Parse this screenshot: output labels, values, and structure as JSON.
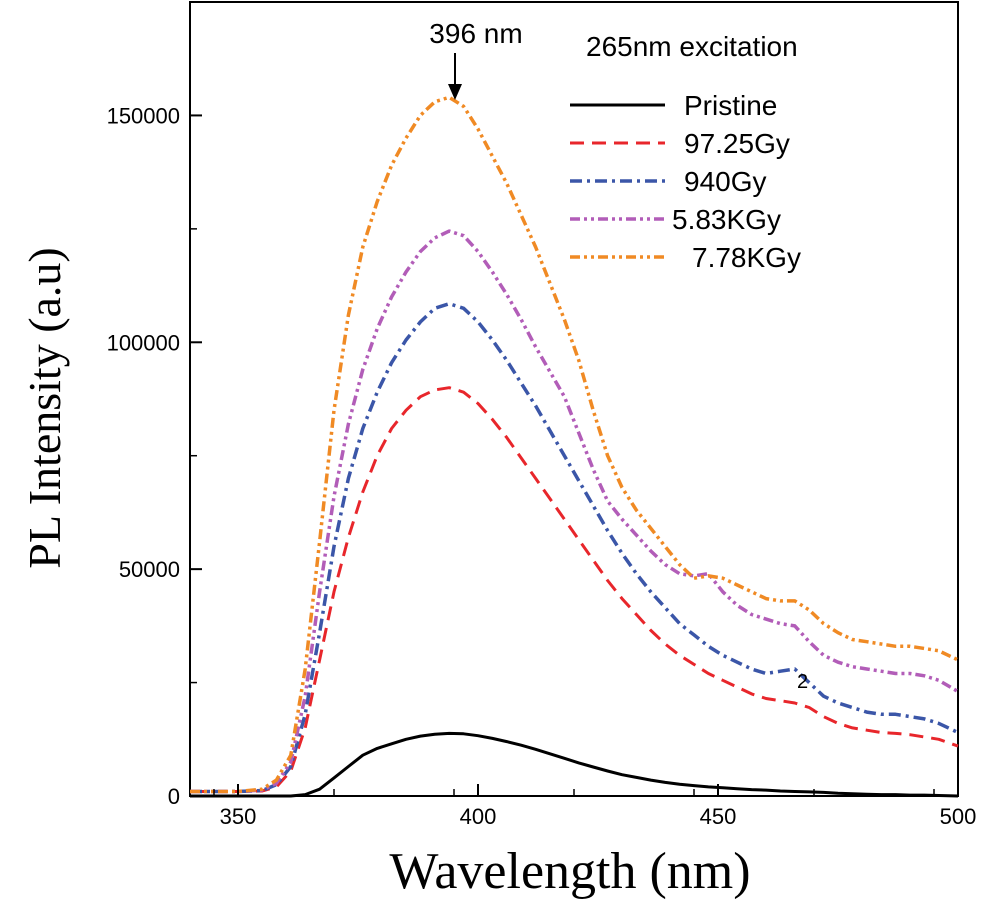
{
  "chart_data": {
    "type": "line",
    "title": "",
    "xlabel": "Wavelength (nm)",
    "ylabel": "PL Intensity (a.u)",
    "xlim": [
      340,
      500
    ],
    "ylim": [
      0,
      175000
    ],
    "x_ticks": [
      350,
      400,
      450,
      500
    ],
    "y_ticks": [
      0,
      50000,
      100000,
      150000
    ],
    "x_tick_labels": [
      "350",
      "400",
      "450",
      "500"
    ],
    "y_tick_labels": [
      "0",
      "50000",
      "100000",
      "150000"
    ],
    "grid": false,
    "legend_position": "top-right",
    "annotations": {
      "peak_label": "396 nm",
      "peak_x": 395,
      "peak_y": 154000,
      "excitation": "265nm excitation",
      "stray_mark": "2"
    },
    "x": [
      340,
      350,
      355,
      358,
      361,
      364,
      367,
      370,
      373,
      376,
      379,
      382,
      385,
      388,
      391,
      394,
      397,
      400,
      403,
      406,
      409,
      412,
      415,
      418,
      421,
      424,
      427,
      430,
      433,
      436,
      439,
      442,
      445,
      448,
      451,
      454,
      457,
      460,
      463,
      466,
      469,
      472,
      475,
      478,
      481,
      484,
      487,
      490,
      493,
      496,
      500
    ],
    "series": [
      {
        "name": "Pristine",
        "color": "#000000",
        "dash": "solid",
        "values": [
          0,
          0,
          0,
          0,
          0,
          300,
          1500,
          4000,
          6500,
          9000,
          10500,
          11500,
          12500,
          13200,
          13600,
          13800,
          13700,
          13300,
          12700,
          12000,
          11200,
          10300,
          9300,
          8300,
          7300,
          6400,
          5500,
          4700,
          4100,
          3500,
          3000,
          2600,
          2300,
          2000,
          1800,
          1600,
          1400,
          1300,
          1100,
          1000,
          900,
          800,
          600,
          500,
          400,
          300,
          300,
          200,
          200,
          100,
          0
        ]
      },
      {
        "name": "97.25Gy",
        "color": "#e8262b",
        "dash": "dashed",
        "values": [
          1000,
          1000,
          1100,
          2000,
          5500,
          15000,
          30000,
          45000,
          57000,
          67000,
          75000,
          81000,
          85000,
          88000,
          89500,
          90000,
          89000,
          86500,
          83000,
          79000,
          74500,
          70000,
          65500,
          61000,
          56500,
          52000,
          47500,
          43500,
          40000,
          36500,
          33500,
          31000,
          29000,
          27000,
          25500,
          24000,
          22500,
          21500,
          21000,
          20500,
          19500,
          17500,
          16000,
          15000,
          14500,
          14000,
          13800,
          13500,
          13000,
          12500,
          11000
        ]
      },
      {
        "name": "940Gy",
        "color": "#3b56a8",
        "dash": "dashdot",
        "values": [
          1000,
          1000,
          1200,
          2500,
          6500,
          18000,
          36000,
          55000,
          70000,
          81000,
          89000,
          95500,
          100500,
          104500,
          107500,
          108500,
          107500,
          104500,
          100500,
          96000,
          91000,
          86000,
          80500,
          75000,
          69500,
          64000,
          58500,
          53500,
          49000,
          45000,
          41500,
          38000,
          35500,
          33000,
          31000,
          29500,
          28000,
          27000,
          27500,
          28000,
          25000,
          22000,
          20500,
          19500,
          18500,
          18000,
          18000,
          17500,
          17000,
          16000,
          14000
        ]
      },
      {
        "name": "5.83KGy",
        "color": "#b25db8",
        "dash": "dashdotdot",
        "values": [
          1000,
          1000,
          1300,
          2800,
          7500,
          22000,
          45000,
          66000,
          82000,
          94000,
          103000,
          110000,
          115500,
          120000,
          123000,
          124500,
          123500,
          120000,
          115500,
          110500,
          105000,
          99000,
          93500,
          88000,
          80000,
          72000,
          65000,
          61000,
          57500,
          54000,
          51000,
          49000,
          48500,
          49000,
          45000,
          42000,
          40000,
          39000,
          38000,
          37500,
          34000,
          31000,
          29500,
          28500,
          28000,
          27500,
          27000,
          27000,
          26500,
          25500,
          23000
        ]
      },
      {
        "name": "7.78KGy",
        "color": "#f08a24",
        "dash": "dashdotdot",
        "values": [
          1000,
          1000,
          1500,
          3500,
          9000,
          28000,
          56000,
          85000,
          106000,
          121000,
          131000,
          139000,
          145000,
          150000,
          153000,
          154000,
          152000,
          147000,
          141000,
          135000,
          128000,
          121000,
          113000,
          105000,
          96000,
          85000,
          75000,
          68000,
          63000,
          59000,
          55000,
          51000,
          48000,
          48500,
          48000,
          46500,
          45000,
          43500,
          43000,
          43000,
          41000,
          38000,
          36000,
          34500,
          34000,
          33500,
          33000,
          33000,
          32500,
          32000,
          30000
        ]
      }
    ]
  }
}
